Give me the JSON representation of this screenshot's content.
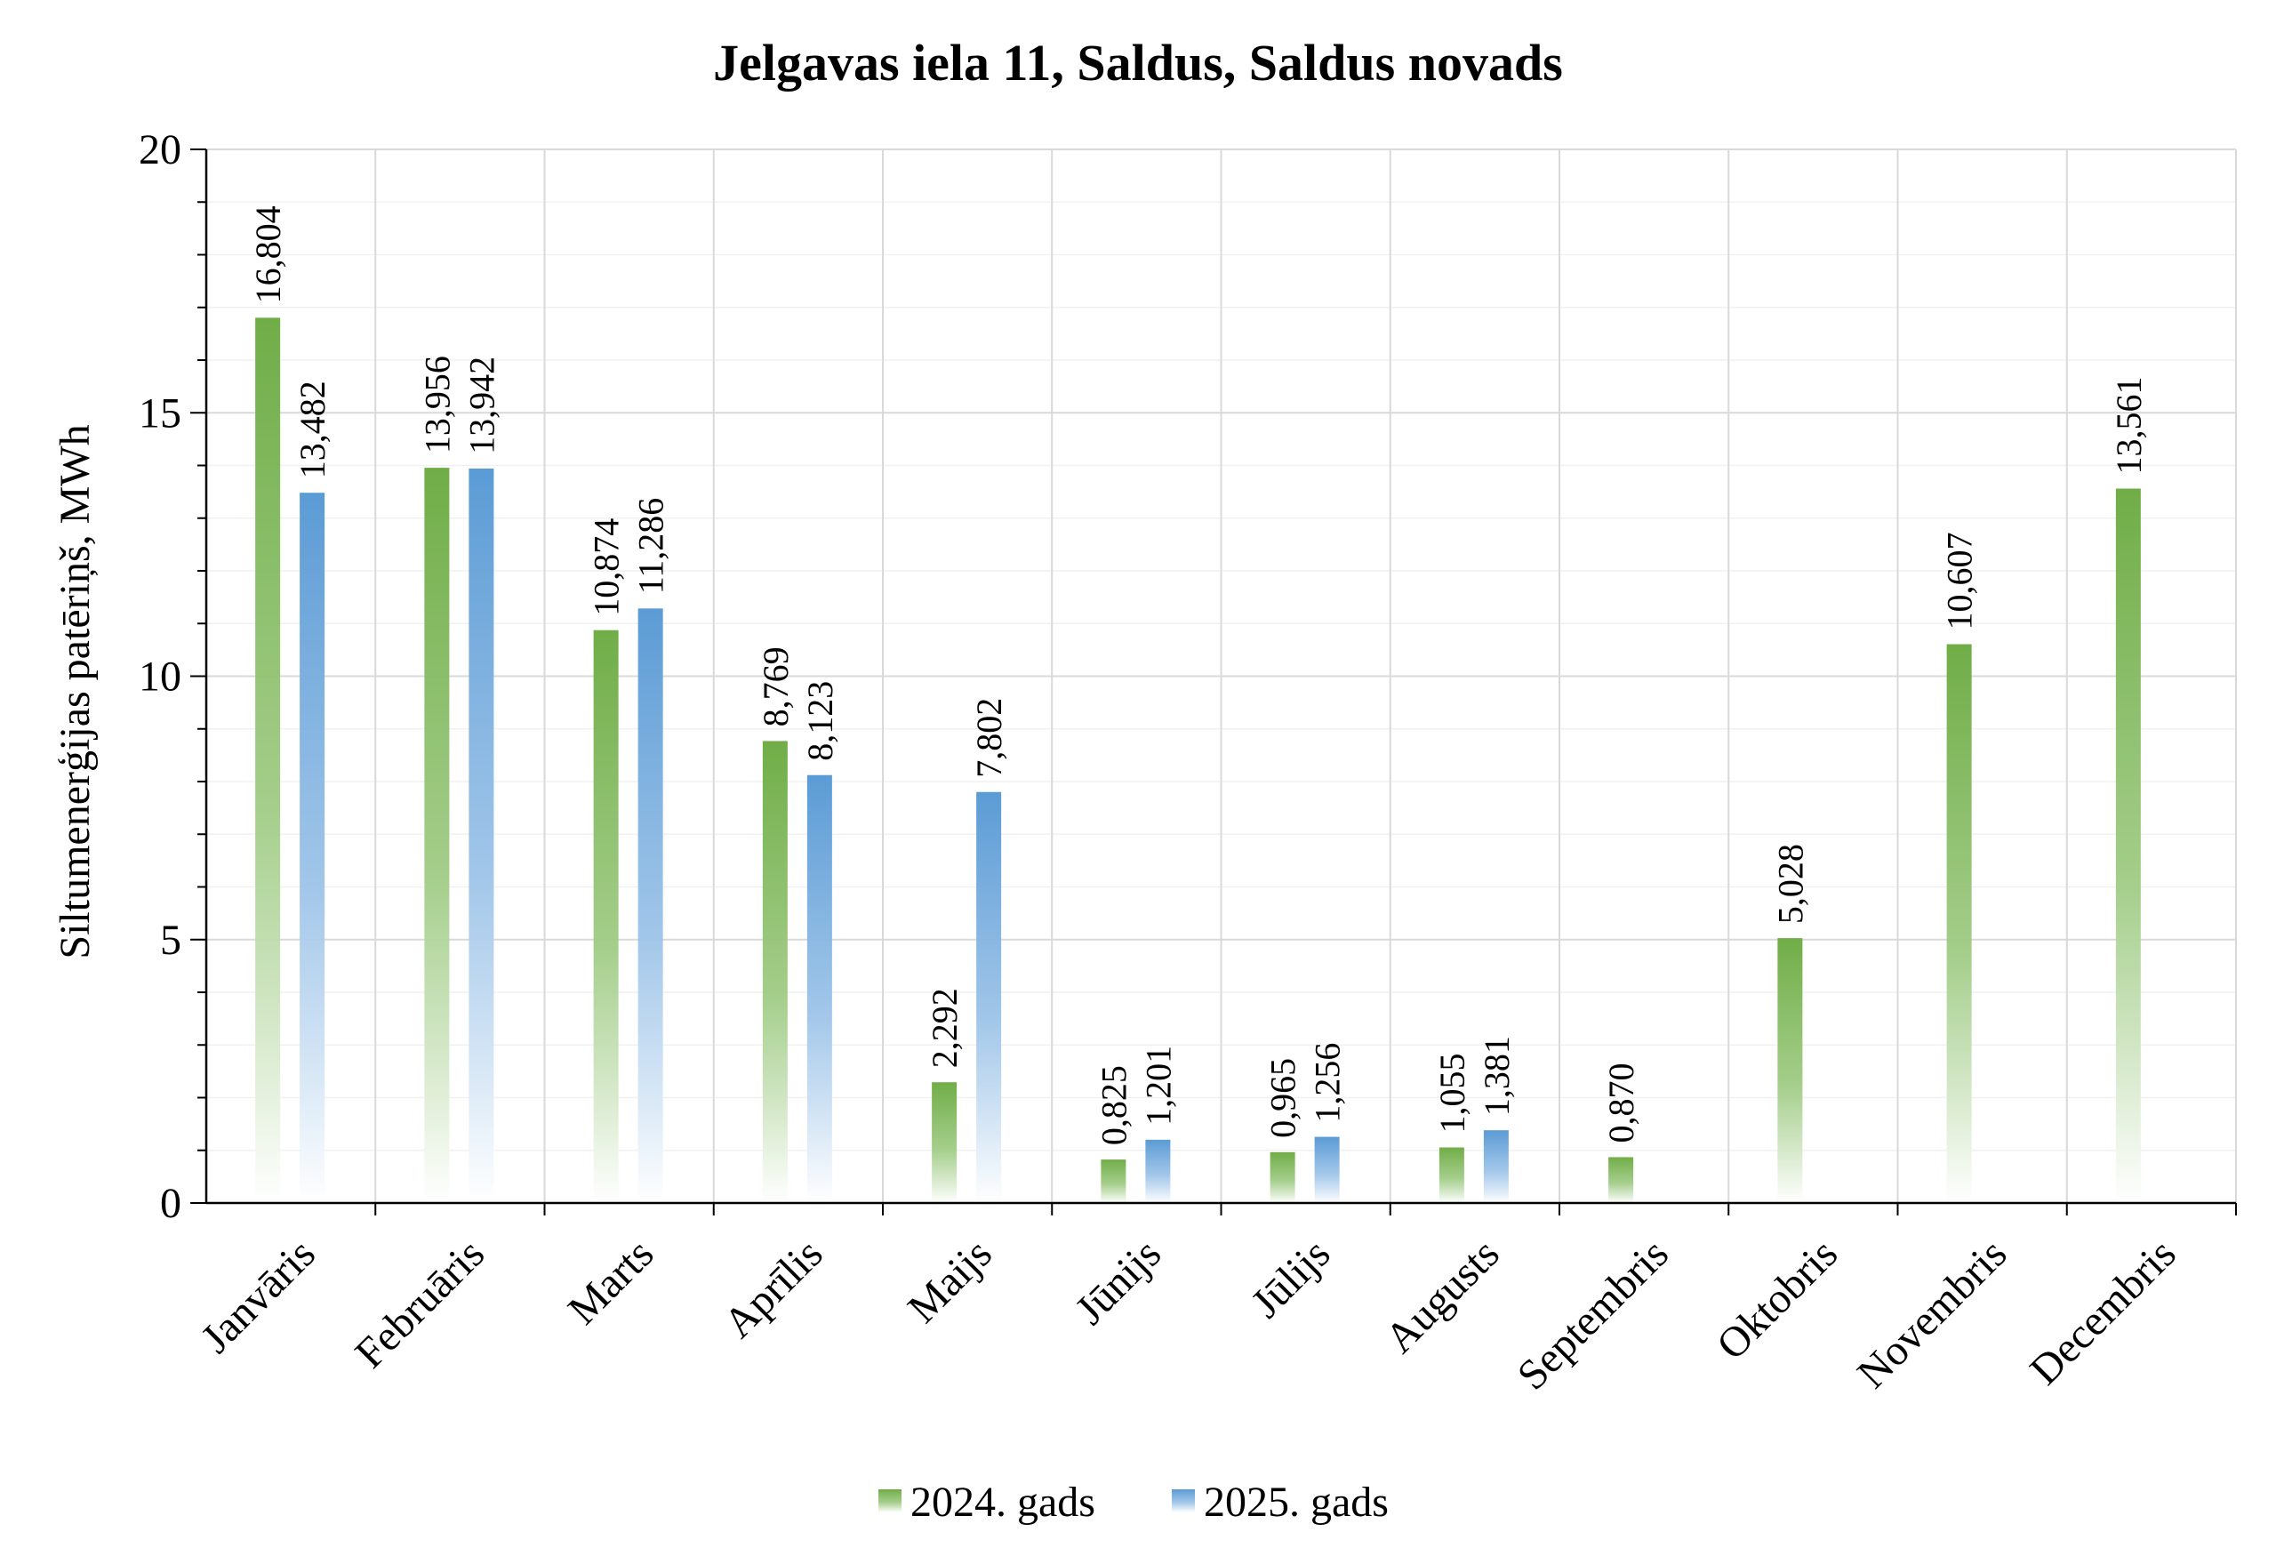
{
  "chart_data": {
    "type": "bar",
    "title": "Jelgavas iela 11, Saldus, Saldus novads",
    "ylabel": "Siltumenerģijas patēriņš, MWh",
    "xlabel": "",
    "ylim": [
      0,
      20
    ],
    "yticks": [
      "0",
      "5",
      "10",
      "15",
      "20"
    ],
    "grid": true,
    "legend_position": "bottom",
    "categories": [
      "Janvāris",
      "Februāris",
      "Marts",
      "Aprīlis",
      "Maijs",
      "Jūnijs",
      "Jūlijs",
      "Augusts",
      "Septembris",
      "Oktobris",
      "Novembris",
      "Decembris"
    ],
    "series": [
      {
        "name": "2024. gads",
        "color": "#70ad47",
        "values": [
          16.804,
          13.956,
          10.874,
          8.769,
          2.292,
          0.825,
          0.965,
          1.055,
          0.87,
          5.028,
          10.607,
          13.561
        ],
        "labels": [
          "16,804",
          "13,956",
          "10,874",
          "8,769",
          "2,292",
          "0,825",
          "0,965",
          "1,055",
          "0,870",
          "5,028",
          "10,607",
          "13,561"
        ]
      },
      {
        "name": "2025. gads",
        "color": "#5b9bd5",
        "values": [
          13.482,
          13.942,
          11.286,
          8.123,
          7.802,
          1.201,
          1.256,
          1.381,
          null,
          null,
          null,
          null
        ],
        "labels": [
          "13,482",
          "13,942",
          "11,286",
          "8,123",
          "7,802",
          "1,201",
          "1,256",
          "1,381",
          null,
          null,
          null,
          null
        ]
      }
    ]
  }
}
